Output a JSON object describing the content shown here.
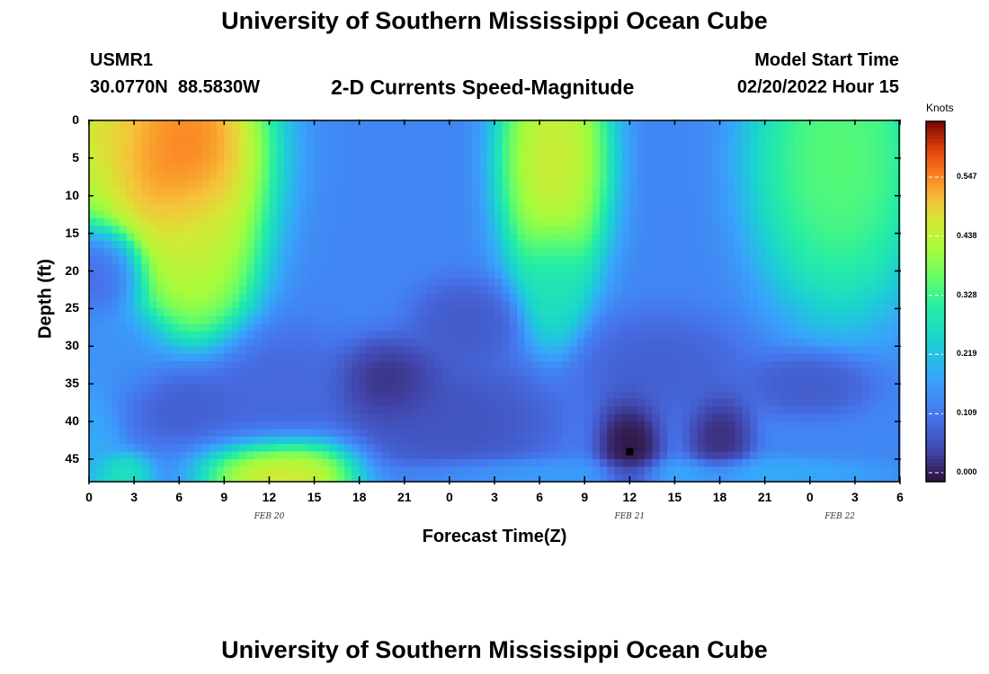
{
  "page": {
    "title": "University of Southern Mississippi Ocean Cube",
    "station_id": "USMR1",
    "station_coords": "30.0770N  88.5830W",
    "subtitle": "2-D Currents Speed-Magnitude",
    "model_start_label": "Model Start Time",
    "model_start_value": "02/20/2022 Hour 15",
    "footer_title": "University of Southern Mississippi Ocean Cube"
  },
  "chart_data": {
    "type": "heatmap",
    "title": "2-D Currents Speed-Magnitude",
    "xlabel": "Forecast Time(Z)",
    "ylabel": "Depth (ft)",
    "x_tick_labels": [
      "0",
      "3",
      "6",
      "9",
      "12",
      "15",
      "18",
      "21",
      "0",
      "3",
      "6",
      "9",
      "12",
      "15",
      "18",
      "21",
      "0",
      "3",
      "6"
    ],
    "x_range_hours": [
      0,
      54
    ],
    "date_labels": [
      {
        "text": "FEB 20",
        "hour": 12
      },
      {
        "text": "FEB 21",
        "hour": 36
      },
      {
        "text": "FEB 22",
        "hour": 50
      }
    ],
    "y_tick_labels": [
      "0",
      "5",
      "10",
      "15",
      "20",
      "25",
      "30",
      "35",
      "40",
      "45"
    ],
    "y_range_ft": [
      0,
      48
    ],
    "colorbar": {
      "label": "Knots",
      "tick_labels": [
        "0.000",
        "0.109",
        "0.219",
        "0.328",
        "0.438",
        "0.547"
      ],
      "range": [
        -0.015,
        0.65
      ]
    },
    "marker": {
      "hour": 36,
      "depth_ft": 44
    },
    "features": [
      {
        "t": 0,
        "d": 0,
        "v": 0.5,
        "st": 5,
        "sd": 9
      },
      {
        "t": 6,
        "d": 4,
        "v": 0.62,
        "st": 4,
        "sd": 12
      },
      {
        "t": 7,
        "d": 18,
        "v": 0.45,
        "st": 2.8,
        "sd": 9
      },
      {
        "t": 1,
        "d": 20,
        "v": 0.08,
        "st": 2,
        "sd": 4
      },
      {
        "t": 2,
        "d": 32,
        "v": 0.15,
        "st": 3,
        "sd": 5
      },
      {
        "t": 6,
        "d": 37,
        "v": 0.06,
        "st": 3,
        "sd": 4
      },
      {
        "t": 12,
        "d": 36,
        "v": 0.08,
        "st": 4,
        "sd": 6
      },
      {
        "t": 13,
        "d": 47,
        "v": 0.52,
        "st": 3.5,
        "sd": 3.5
      },
      {
        "t": 2,
        "d": 47,
        "v": 0.3,
        "st": 1.5,
        "sd": 2
      },
      {
        "t": 20,
        "d": 35,
        "v": 0.0,
        "st": 2.5,
        "sd": 4
      },
      {
        "t": 25,
        "d": 27,
        "v": 0.06,
        "st": 2.5,
        "sd": 4
      },
      {
        "t": 24,
        "d": 40,
        "v": 0.05,
        "st": 5,
        "sd": 6
      },
      {
        "t": 31,
        "d": 5,
        "v": 0.5,
        "st": 2.5,
        "sd": 12
      },
      {
        "t": 31,
        "d": 22,
        "v": 0.28,
        "st": 1.5,
        "sd": 6
      },
      {
        "t": 36,
        "d": 43,
        "v": -0.03,
        "st": 1.5,
        "sd": 5
      },
      {
        "t": 42,
        "d": 42,
        "v": 0.0,
        "st": 1.5,
        "sd": 4
      },
      {
        "t": 38,
        "d": 33,
        "v": 0.07,
        "st": 4,
        "sd": 5
      },
      {
        "t": 50,
        "d": 5,
        "v": 0.38,
        "st": 4,
        "sd": 14
      },
      {
        "t": 48,
        "d": 35,
        "v": 0.06,
        "st": 3,
        "sd": 3
      },
      {
        "t": 44,
        "d": 47,
        "v": 0.19,
        "st": 6,
        "sd": 1.5
      },
      {
        "t": 28,
        "d": 47,
        "v": 0.17,
        "st": 6,
        "sd": 1.5
      },
      {
        "t": 0,
        "d": 42,
        "v": 0.19,
        "st": 1.5,
        "sd": 6
      }
    ],
    "background_value": 0.13
  }
}
